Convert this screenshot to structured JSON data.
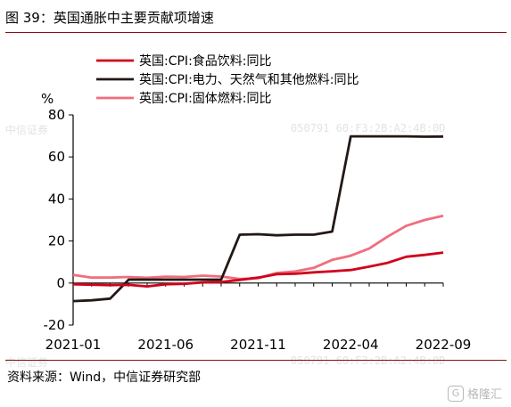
{
  "header": {
    "title": "图 39：英国通胀中主要贡献项增速"
  },
  "footer": {
    "source": "资料来源：Wind，中信证券研究部",
    "watermark_left": "中信证券",
    "watermark_right": "050791 60:F3:2B:A2:4B:0D",
    "brand": "格隆汇",
    "brand_icon": "G"
  },
  "chart_data": {
    "type": "line",
    "ylabel": "%",
    "ylim": [
      -20,
      80
    ],
    "yticks": [
      "80",
      "60",
      "40",
      "20",
      "0",
      "-20"
    ],
    "ytick_values": [
      80,
      60,
      40,
      20,
      0,
      -20
    ],
    "x": [
      "2021-01",
      "2021-02",
      "2021-03",
      "2021-04",
      "2021-05",
      "2021-06",
      "2021-07",
      "2021-08",
      "2021-09",
      "2021-10",
      "2021-11",
      "2021-12",
      "2022-01",
      "2022-02",
      "2022-03",
      "2022-04",
      "2022-05",
      "2022-06",
      "2022-07",
      "2022-08",
      "2022-09"
    ],
    "xtick_labels": [
      "2021-01",
      "2021-06",
      "2021-11",
      "2022-04",
      "2022-09"
    ],
    "xtick_indices": [
      0,
      5,
      10,
      15,
      20
    ],
    "legend_position": "top-left",
    "grid": false,
    "series": [
      {
        "name": "英国:CPI:食品饮料:同比",
        "color": "#d0021b",
        "values": [
          -0.6,
          -0.8,
          -1.0,
          -0.9,
          -1.6,
          -0.6,
          -0.4,
          0.3,
          0.5,
          1.5,
          2.6,
          4.2,
          4.4,
          5.1,
          5.6,
          6.2,
          7.8,
          9.6,
          12.5,
          13.4,
          14.5
        ]
      },
      {
        "name": "英国:CPI:电力、天然气和其他燃料:同比",
        "color": "#231815",
        "values": [
          -8.6,
          -8.2,
          -7.4,
          1.6,
          1.6,
          1.6,
          1.6,
          1.6,
          1.6,
          23.0,
          23.2,
          22.7,
          23.0,
          23.0,
          24.5,
          69.8,
          69.8,
          69.8,
          69.8,
          69.6,
          69.7
        ]
      },
      {
        "name": "英国:CPI:固体燃料:同比",
        "color": "#f06e7d",
        "values": [
          3.9,
          2.6,
          2.6,
          2.9,
          2.5,
          3.0,
          2.9,
          3.5,
          3.1,
          1.9,
          2.3,
          4.8,
          5.5,
          7.2,
          11.0,
          13.0,
          16.4,
          22.1,
          27.2,
          30.0,
          32.0
        ]
      }
    ]
  }
}
